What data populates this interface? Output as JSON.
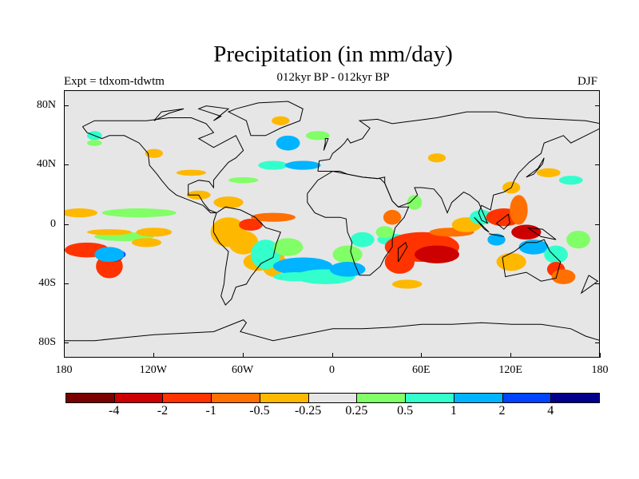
{
  "title": "Precipitation (in mm/day)",
  "subtitle": "012kyr BP - 012kyr BP",
  "left_label": "Expt = tdxom-tdwtm",
  "right_label": "DJF",
  "map": {
    "projection": "cylindrical equidistant",
    "lon_range": [
      -180,
      180
    ],
    "lat_range": [
      -90,
      90
    ],
    "background_color": "#e6e6e6",
    "lat_ticks": [
      {
        "lat": 80,
        "label": "80N"
      },
      {
        "lat": 40,
        "label": "40N"
      },
      {
        "lat": 0,
        "label": "0"
      },
      {
        "lat": -40,
        "label": "40S"
      },
      {
        "lat": -80,
        "label": "80S"
      }
    ],
    "lon_ticks": [
      {
        "lon": -180,
        "label": "180"
      },
      {
        "lon": -120,
        "label": "120W"
      },
      {
        "lon": -60,
        "label": "60W"
      },
      {
        "lon": 0,
        "label": "0"
      },
      {
        "lon": 60,
        "label": "60E"
      },
      {
        "lon": 120,
        "label": "120E"
      },
      {
        "lon": 180,
        "label": "180"
      }
    ]
  },
  "colorbar": {
    "colors": [
      "#7a0000",
      "#cc0000",
      "#ff3300",
      "#ff7000",
      "#ffb800",
      "#e6e6e6",
      "#80ff66",
      "#33ffcc",
      "#00b4ff",
      "#0044ff",
      "#00008c"
    ],
    "labels": [
      "-4",
      "-2",
      "-1",
      "-0.5",
      "-0.25",
      "0.25",
      "0.5",
      "1",
      "2",
      "4"
    ]
  }
}
